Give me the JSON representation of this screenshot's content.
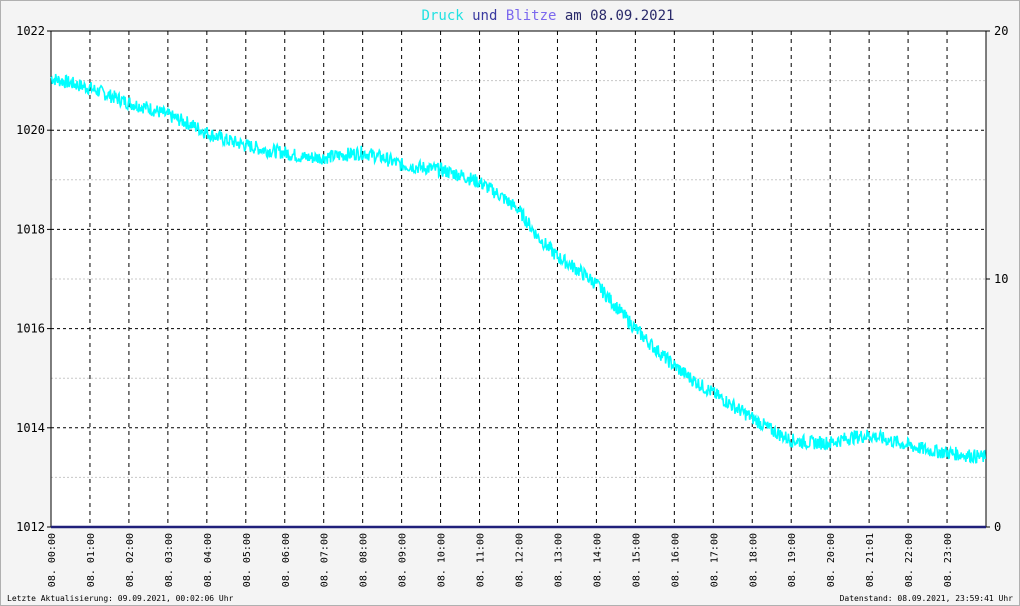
{
  "header": {
    "title_parts": [
      {
        "text": "Druck",
        "color": "#22e2e2"
      },
      {
        "text": " und ",
        "color": "#3a3aa0"
      },
      {
        "text": "Blitze",
        "color": "#7b68ee"
      },
      {
        "text": " am 08.09.2021",
        "color": "#2a2a6a"
      }
    ]
  },
  "footer": {
    "left": "Letzte Aktualisierung: 09.09.2021, 00:02:06 Uhr",
    "right": "Datenstand: 08.09.2021, 23:59:41 Uhr"
  },
  "colors": {
    "pressure": "#00ffff",
    "lightning": "#20207a",
    "grid_major": "#000000",
    "grid_minor": "#c8c8c8",
    "text": "#000000"
  },
  "chart_data": {
    "type": "line",
    "title": "Druck und Blitze am 08.09.2021",
    "x_tick_labels": [
      "08. 00:00",
      "08. 01:00",
      "08. 02:00",
      "08. 03:00",
      "08. 04:00",
      "08. 05:00",
      "08. 06:00",
      "08. 07:00",
      "08. 08:00",
      "08. 09:00",
      "08. 10:00",
      "08. 11:00",
      "08. 12:00",
      "08. 13:00",
      "08. 14:00",
      "08. 15:00",
      "08. 16:00",
      "08. 17:00",
      "08. 18:00",
      "08. 19:00",
      "08. 20:00",
      "08. 21:01",
      "08. 22:00",
      "08. 23:00"
    ],
    "xlim_hours": [
      0,
      24
    ],
    "y_left": {
      "ylim": [
        1012,
        1022
      ],
      "ticks": [
        "1012",
        "1014",
        "1016",
        "1018",
        "1020",
        "1022"
      ]
    },
    "y_right": {
      "ylim": [
        0,
        20
      ],
      "ticks": [
        "0",
        "10",
        "20"
      ]
    },
    "grid": true,
    "series": [
      {
        "name": "Druck",
        "axis": "left",
        "hours": [
          0,
          0.5,
          1,
          1.5,
          2,
          2.5,
          3,
          3.5,
          4,
          4.5,
          5,
          5.5,
          6,
          6.5,
          7,
          7.5,
          8,
          8.5,
          9,
          9.5,
          10,
          10.5,
          11,
          11.5,
          12,
          12.5,
          13,
          13.5,
          14,
          14.5,
          15,
          15.5,
          16,
          16.5,
          17,
          17.5,
          18,
          18.5,
          19,
          19.5,
          20,
          20.5,
          21,
          21.5,
          22,
          22.5,
          23,
          23.5,
          23.98
        ],
        "values": [
          1021.05,
          1020.95,
          1020.85,
          1020.7,
          1020.55,
          1020.45,
          1020.3,
          1020.15,
          1019.95,
          1019.8,
          1019.7,
          1019.6,
          1019.55,
          1019.45,
          1019.45,
          1019.5,
          1019.55,
          1019.45,
          1019.3,
          1019.25,
          1019.2,
          1019.1,
          1018.95,
          1018.7,
          1018.4,
          1017.85,
          1017.45,
          1017.2,
          1016.9,
          1016.45,
          1016.0,
          1015.6,
          1015.25,
          1014.95,
          1014.7,
          1014.45,
          1014.2,
          1013.95,
          1013.75,
          1013.7,
          1013.7,
          1013.8,
          1013.85,
          1013.75,
          1013.65,
          1013.55,
          1013.5,
          1013.45,
          1013.4
        ]
      },
      {
        "name": "Blitze",
        "axis": "right",
        "hours": [
          0,
          24
        ],
        "values": [
          0,
          0
        ]
      }
    ]
  }
}
